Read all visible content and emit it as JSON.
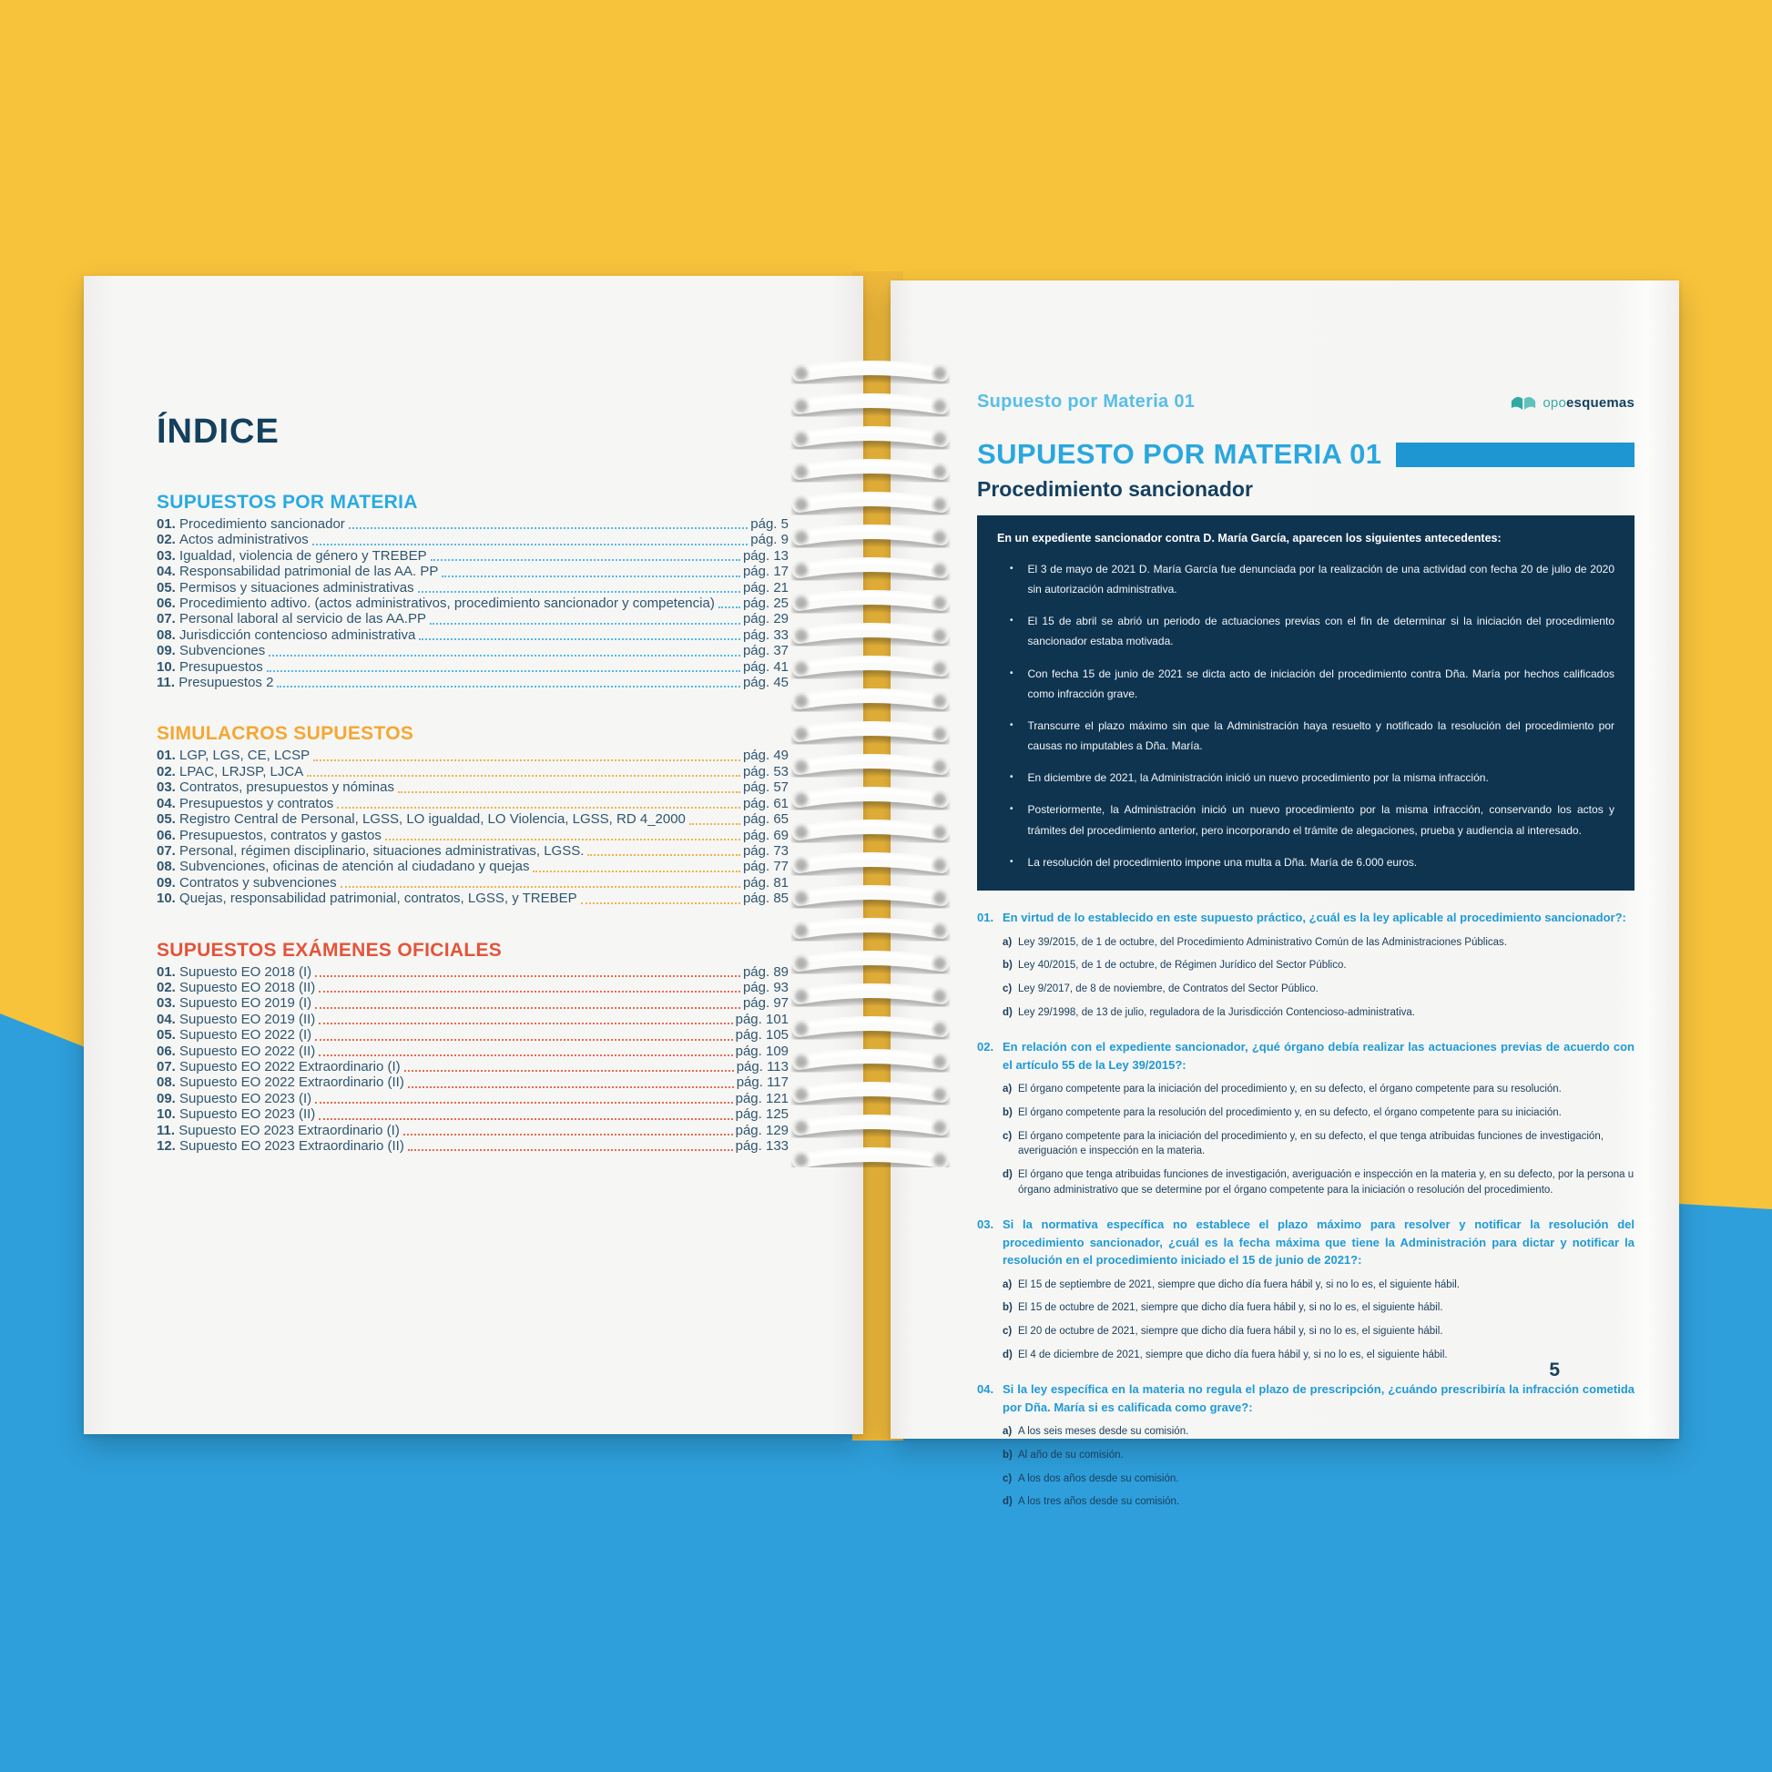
{
  "background": {
    "yellow": "#F7C33B",
    "blue": "#2E9FDB"
  },
  "left_page": {
    "title": "ÍNDICE",
    "sections": [
      {
        "heading": "SUPUESTOS POR MATERIA",
        "color": "#29ABE2",
        "dot_color": "#54B9E8",
        "items": [
          {
            "num": "01.",
            "label": "Procedimiento sancionador",
            "page": "pág. 5"
          },
          {
            "num": "02.",
            "label": "Actos administrativos",
            "page": "pág. 9"
          },
          {
            "num": "03.",
            "label": "Igualdad, violencia de género y TREBEP",
            "page": "pág. 13"
          },
          {
            "num": "04.",
            "label": "Responsabilidad patrimonial de las AA. PP",
            "page": "pág. 17"
          },
          {
            "num": "05.",
            "label": "Permisos y situaciones administrativas",
            "page": "pág. 21"
          },
          {
            "num": "06.",
            "label": "Procedimiento adtivo. (actos administrativos, procedimiento sancionador y competencia)",
            "page": "pág. 25"
          },
          {
            "num": "07.",
            "label": "Personal laboral al servicio de las AA.PP",
            "page": "pág. 29"
          },
          {
            "num": "08.",
            "label": "Jurisdicción contencioso administrativa",
            "page": "pág. 33"
          },
          {
            "num": "09.",
            "label": "Subvenciones",
            "page": "pág. 37"
          },
          {
            "num": "10.",
            "label": "Presupuestos",
            "page": "pág. 41"
          },
          {
            "num": "11.",
            "label": "Presupuestos 2",
            "page": "pág. 45"
          }
        ]
      },
      {
        "heading": "SIMULACROS SUPUESTOS",
        "color": "#F5A733",
        "dot_color": "#F2B24E",
        "items": [
          {
            "num": "01.",
            "label": "LGP, LGS, CE, LCSP",
            "page": "pág. 49"
          },
          {
            "num": "02.",
            "label": "LPAC, LRJSP, LJCA",
            "page": "pág. 53"
          },
          {
            "num": "03.",
            "label": "Contratos, presupuestos y nóminas",
            "page": "pág. 57"
          },
          {
            "num": "04.",
            "label": "Presupuestos y contratos",
            "page": "pág. 61"
          },
          {
            "num": "05.",
            "label": "Registro Central de Personal, LGSS, LO igualdad, LO Violencia, LGSS, RD 4_2000",
            "page": "pág. 65"
          },
          {
            "num": "06.",
            "label": "Presupuestos, contratos y gastos",
            "page": "pág. 69"
          },
          {
            "num": "07.",
            "label": "Personal, régimen disciplinario, situaciones administrativas, LGSS.",
            "page": "pág. 73"
          },
          {
            "num": "08.",
            "label": "Subvenciones, oficinas de atención al ciudadano y quejas",
            "page": "pág. 77"
          },
          {
            "num": "09.",
            "label": "Contratos y subvenciones",
            "page": "pág. 81"
          },
          {
            "num": "10.",
            "label": "Quejas, responsabilidad patrimonial, contratos, LGSS, y TREBEP",
            "page": "pág. 85"
          }
        ]
      },
      {
        "heading": "SUPUESTOS EXÁMENES OFICIALES",
        "color": "#E4543B",
        "dot_color": "#E96A4F",
        "items": [
          {
            "num": "01.",
            "label": "Supuesto EO 2018 (I)",
            "page": "pág. 89"
          },
          {
            "num": "02.",
            "label": "Supuesto EO 2018 (II)",
            "page": "pág. 93"
          },
          {
            "num": "03.",
            "label": "Supuesto EO 2019 (I)",
            "page": "pág. 97"
          },
          {
            "num": "04.",
            "label": "Supuesto EO 2019 (II)",
            "page": "pág. 101"
          },
          {
            "num": "05.",
            "label": "Supuesto EO 2022 (I)",
            "page": "pág. 105"
          },
          {
            "num": "06.",
            "label": "Supuesto EO 2022 (II)",
            "page": "pág. 109"
          },
          {
            "num": "07.",
            "label": "Supuesto EO 2022 Extraordinario (I)",
            "page": "pág. 113"
          },
          {
            "num": "08.",
            "label": "Supuesto EO 2022 Extraordinario (II)",
            "page": "pág. 117"
          },
          {
            "num": "09.",
            "label": "Supuesto EO 2023 (I)",
            "page": "pág. 121"
          },
          {
            "num": "10.",
            "label": "Supuesto EO 2023 (II)",
            "page": "pág. 125"
          },
          {
            "num": "11.",
            "label": "Supuesto EO 2023 Extraordinario (I)",
            "page": "pág. 129"
          },
          {
            "num": "12.",
            "label": "Supuesto EO 2023 Extraordinario (II)",
            "page": "pág. 133"
          }
        ]
      }
    ]
  },
  "right_page": {
    "header": {
      "running_title": "Supuesto por Materia 01",
      "logo": {
        "prefix": "opo",
        "suffix": "esquemas",
        "icon_color": "#35ACA7"
      }
    },
    "title": "SUPUESTO POR MATERIA 01",
    "title_bar_color": "#1E96D2",
    "subtitle": "Procedimiento sancionador",
    "case_box": {
      "background": "#0F3450",
      "intro": "En un expediente sancionador contra D. María García, aparecen los siguientes antecedentes:",
      "bullets": [
        "El 3 de mayo de 2021 D. María García fue denunciada por la realización de una actividad con fecha 20 de julio de 2020 sin autorización administrativa.",
        "El 15 de abril se abrió un periodo de actuaciones previas con el fin de determinar si la iniciación del procedimiento sancionador estaba motivada.",
        "Con fecha 15 de junio de 2021 se dicta acto de iniciación del procedimiento contra Dña. María por hechos calificados como infracción grave.",
        "Transcurre el plazo máximo sin que la Administración haya resuelto y notificado la resolución del procedimiento por causas no imputables a Dña. María.",
        "En diciembre de 2021, la Administración inició un nuevo procedimiento por la misma infracción.",
        "Posteriormente, la Administración inició un nuevo procedimiento por la misma infracción, conservando los actos y trámites del procedimiento anterior, pero incorporando el trámite de alegaciones, prueba y audiencia al interesado.",
        "La resolución del procedimiento impone una multa a Dña. María de 6.000 euros."
      ]
    },
    "questions": [
      {
        "num": "01.",
        "text": "En virtud de lo establecido en este supuesto práctico, ¿cuál es la ley aplicable al procedimiento sancionador?:",
        "options": [
          {
            "letter": "a)",
            "text": "Ley 39/2015, de 1 de octubre, del Procedimiento Administrativo Común de las Administraciones Públicas."
          },
          {
            "letter": "b)",
            "text": "Ley 40/2015, de 1 de octubre, de Régimen Jurídico del Sector Público."
          },
          {
            "letter": "c)",
            "text": "Ley 9/2017, de 8 de noviembre, de Contratos del Sector Público."
          },
          {
            "letter": "d)",
            "text": "Ley 29/1998, de 13 de julio, reguladora de la Jurisdicción Contencioso-administrativa."
          }
        ]
      },
      {
        "num": "02.",
        "text": "En relación con el expediente sancionador, ¿qué órgano debía realizar las actuaciones previas de acuerdo con el artículo 55 de la Ley 39/2015?:",
        "options": [
          {
            "letter": "a)",
            "text": "El órgano competente para la iniciación del procedimiento y, en su defecto, el órgano competente para su resolución."
          },
          {
            "letter": "b)",
            "text": "El órgano competente para la resolución del procedimiento y, en su defecto, el órgano competente para su iniciación."
          },
          {
            "letter": "c)",
            "text": "El órgano competente para la iniciación del procedimiento y, en su defecto, el que tenga atribuidas funciones de investigación, averiguación e inspección en la materia."
          },
          {
            "letter": "d)",
            "text": "El órgano que tenga atribuidas funciones de investigación, averiguación e inspección en la materia y, en su defecto, por la persona u órgano administrativo que se determine por el órgano competente para la iniciación o resolución del procedimiento."
          }
        ]
      },
      {
        "num": "03.",
        "text": "Si la normativa específica no establece el plazo máximo para resolver y notificar la resolución del procedimiento sancionador, ¿cuál es la fecha máxima que tiene la Administración para dictar y notificar la resolución en el procedimiento iniciado el 15 de junio de 2021?:",
        "options": [
          {
            "letter": "a)",
            "text": "El 15 de septiembre de 2021, siempre que dicho día fuera hábil y, si no lo es, el siguiente hábil."
          },
          {
            "letter": "b)",
            "text": "El 15 de octubre de 2021, siempre que dicho día fuera hábil y, si no lo es, el siguiente hábil."
          },
          {
            "letter": "c)",
            "text": "El 20 de octubre de 2021, siempre que dicho día fuera hábil y, si no lo es, el siguiente hábil."
          },
          {
            "letter": "d)",
            "text": "El 4 de diciembre de 2021, siempre que dicho día fuera hábil y, si no lo es, el siguiente hábil."
          }
        ]
      },
      {
        "num": "04.",
        "text": "Si la ley específica en la materia no regula el plazo de prescripción, ¿cuándo prescribiría la infracción cometida por Dña. María si es calificada como grave?:",
        "options": [
          {
            "letter": "a)",
            "text": "A los seis meses desde su comisión."
          },
          {
            "letter": "b)",
            "text": "Al año de su comisión."
          },
          {
            "letter": "c)",
            "text": "A los dos años desde su comisión."
          },
          {
            "letter": "d)",
            "text": "A los tres años desde su comisión."
          }
        ]
      }
    ],
    "page_number": "5"
  }
}
